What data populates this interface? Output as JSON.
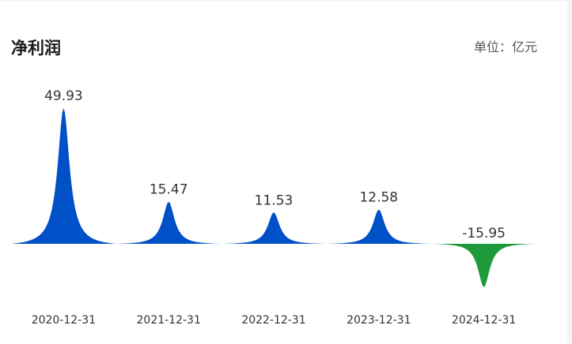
{
  "header": {
    "title": "净利润",
    "unit": "单位：亿元"
  },
  "chart_data": {
    "type": "area",
    "title": "净利润",
    "unit": "单位：亿元",
    "categories": [
      "2020-12-31",
      "2021-12-31",
      "2022-12-31",
      "2023-12-31",
      "2024-12-31"
    ],
    "values": [
      49.93,
      15.47,
      11.53,
      12.58,
      -15.95
    ],
    "data_labels": [
      "49.93",
      "15.47",
      "11.53",
      "12.58",
      "-15.95"
    ],
    "colors": {
      "positive": "#0050c8",
      "negative": "#1f9a3a"
    },
    "grid": false,
    "legend": "none"
  }
}
